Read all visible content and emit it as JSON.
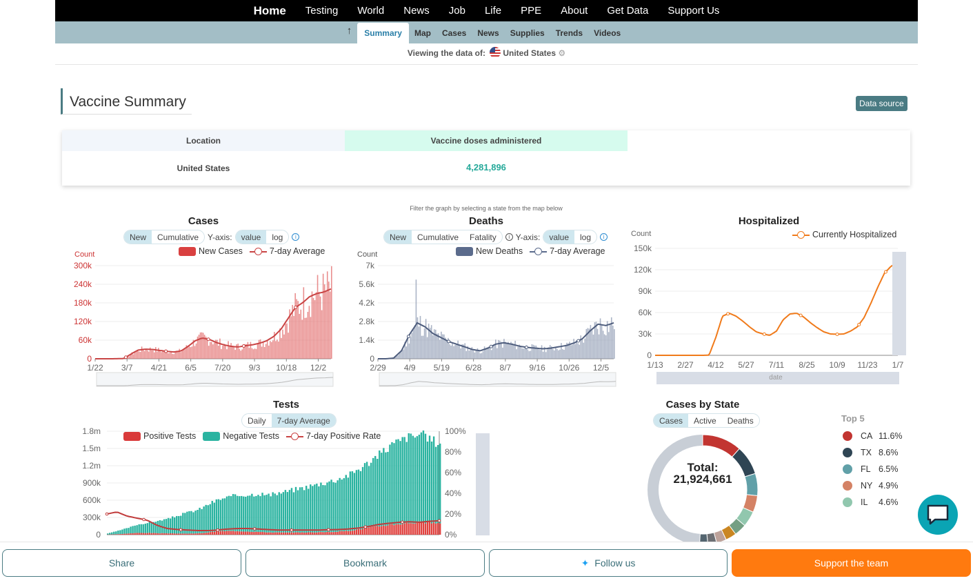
{
  "topnav": {
    "items": [
      "Home",
      "Testing",
      "World",
      "News",
      "Job",
      "Life",
      "PPE",
      "About",
      "Get Data",
      "Support Us"
    ]
  },
  "subnav": {
    "items": [
      "Summary",
      "Map",
      "Cases",
      "News",
      "Supplies",
      "Trends",
      "Videos"
    ],
    "active": "Summary"
  },
  "viewing": {
    "label": "Viewing the data of:",
    "location": "United States"
  },
  "vaccine": {
    "title": "Vaccine Summary",
    "data_source": "Data source",
    "col_location": "Location",
    "col_doses": "Vaccine doses administered",
    "row_location": "United States",
    "row_doses": "4,281,896"
  },
  "filter_note": "Filter the graph by selecting a state from the map below",
  "cases": {
    "title": "Cases",
    "pills": [
      "New",
      "Cumulative"
    ],
    "yaxis_label": "Y-axis:",
    "scale": [
      "value",
      "log"
    ],
    "legend_bar": "New Cases",
    "legend_line": "7-day Average",
    "count": "Count"
  },
  "deaths": {
    "title": "Deaths",
    "pills": [
      "New",
      "Cumulative",
      "Fatality"
    ],
    "yaxis_label": "Y-axis:",
    "scale": [
      "value",
      "log"
    ],
    "legend_bar": "New Deaths",
    "legend_line": "7-day Average",
    "count": "Count"
  },
  "hosp": {
    "title": "Hospitalized",
    "legend_line": "Currently Hospitalized",
    "count": "Count",
    "date_label": "date"
  },
  "tests": {
    "title": "Tests",
    "pills": [
      "Daily",
      "7-day Average"
    ],
    "legend_pos": "Positive Tests",
    "legend_neg": "Negative Tests",
    "legend_rate": "7-day Positive Rate"
  },
  "state": {
    "title": "Cases by State",
    "pills": [
      "Cases",
      "Active",
      "Deaths"
    ],
    "total_label": "Total:",
    "total": "21,924,661",
    "top5_title": "Top 5"
  },
  "top5": [
    {
      "state": "CA",
      "pct": "11.6%",
      "color": "#c23531"
    },
    {
      "state": "TX",
      "pct": "8.6%",
      "color": "#2f4554"
    },
    {
      "state": "FL",
      "pct": "6.5%",
      "color": "#61a0a8"
    },
    {
      "state": "NY",
      "pct": "4.9%",
      "color": "#d48265"
    },
    {
      "state": "IL",
      "pct": "4.6%",
      "color": "#91c7ae"
    }
  ],
  "bottom": {
    "share": "Share",
    "bookmark": "Bookmark",
    "follow": "Follow us",
    "support": "Support the team"
  },
  "colors": {
    "cases": "#d94040",
    "deaths": "#5b6b8c",
    "hosp": "#f07a1a",
    "neg": "#2ab3a0",
    "accent": "#4a7b83"
  },
  "chart_data": [
    {
      "type": "bar",
      "name": "Cases",
      "xticks": [
        "1/22",
        "3/7",
        "4/21",
        "6/5",
        "7/20",
        "9/3",
        "10/18",
        "12/2"
      ],
      "yticks": [
        "0",
        "60k",
        "120k",
        "180k",
        "240k",
        "300k"
      ],
      "ylim": [
        0,
        300000
      ],
      "ylabel": "Count",
      "avg": [
        0,
        0,
        0,
        200,
        800,
        15000,
        28000,
        31000,
        30000,
        27000,
        24000,
        22000,
        25000,
        40000,
        58000,
        67000,
        62000,
        52000,
        45000,
        40000,
        38000,
        42000,
        45000,
        50000,
        58000,
        72000,
        95000,
        130000,
        165000,
        180000,
        200000,
        210000,
        215000,
        225000
      ]
    },
    {
      "type": "bar",
      "name": "Deaths",
      "xticks": [
        "2/29",
        "4/9",
        "5/19",
        "6/28",
        "8/7",
        "9/16",
        "10/26",
        "12/5"
      ],
      "yticks": [
        "0",
        "1.4k",
        "2.8k",
        "4.2k",
        "5.6k",
        "7k"
      ],
      "ylim": [
        0,
        7000
      ],
      "ylabel": "Count",
      "avg": [
        0,
        0,
        50,
        600,
        1800,
        2700,
        2400,
        1900,
        1600,
        1300,
        1100,
        900,
        700,
        600,
        800,
        1100,
        1200,
        1100,
        950,
        850,
        800,
        750,
        800,
        900,
        1000,
        1200,
        1500,
        2100,
        2600,
        2500,
        2700
      ]
    },
    {
      "type": "line",
      "name": "Hospitalized",
      "xticks": [
        "1/13",
        "2/27",
        "4/12",
        "5/27",
        "7/11",
        "8/25",
        "10/9",
        "11/23",
        "1/7"
      ],
      "yticks": [
        "0",
        "30k",
        "60k",
        "90k",
        "120k",
        "150k"
      ],
      "ylim": [
        0,
        150000
      ],
      "ylabel": "Count",
      "values": [
        0,
        0,
        0,
        0,
        0,
        0,
        0,
        0,
        200,
        25000,
        55000,
        59000,
        55000,
        48000,
        40000,
        33000,
        30000,
        28000,
        34000,
        50000,
        58000,
        59000,
        54000,
        46000,
        39000,
        33000,
        30000,
        29500,
        30000,
        34000,
        40000,
        53000,
        73000,
        95000,
        115000,
        125000,
        130000
      ]
    },
    {
      "type": "bar",
      "name": "Tests",
      "yticks": [
        "0",
        "300k",
        "600k",
        "900k",
        "1.2m",
        "1.5m",
        "1.8m"
      ],
      "ylim": [
        0,
        1800000
      ],
      "y2ticks": [
        "0%",
        "20%",
        "40%",
        "60%",
        "80%",
        "100%"
      ],
      "neg": [
        20000,
        60000,
        100000,
        150000,
        180000,
        220000,
        260000,
        320000,
        380000,
        420000,
        500000,
        560000,
        600000,
        640000,
        660000,
        680000,
        660000,
        700000,
        740000,
        780000,
        820000,
        860000,
        900000,
        940000,
        1000000,
        1080000,
        1160000,
        1280000,
        1400000,
        1480000,
        1540000,
        1560000,
        1480000,
        1420000
      ],
      "pos": [
        2000,
        8000,
        20000,
        30000,
        30000,
        25000,
        22000,
        20000,
        18000,
        22000,
        40000,
        60000,
        65000,
        62000,
        55000,
        48000,
        40000,
        38000,
        36000,
        38000,
        40000,
        42000,
        46000,
        55000,
        70000,
        95000,
        125000,
        150000,
        175000,
        190000,
        205000,
        215000,
        210000,
        200000
      ],
      "rate": [
        20,
        22,
        18,
        16,
        14,
        9,
        6,
        5,
        4.5,
        4,
        4,
        4.5,
        5.5,
        6,
        6,
        5.5,
        5,
        4.5,
        4.5,
        4.5,
        4.5,
        4.5,
        4.8,
        5,
        5.5,
        6.5,
        8,
        10,
        11,
        12,
        12.5,
        12,
        13,
        13.5
      ]
    },
    {
      "type": "pie",
      "name": "Cases by State",
      "labels": [
        "CA",
        "TX",
        "FL",
        "NY",
        "IL"
      ],
      "values": [
        11.6,
        8.6,
        6.5,
        4.9,
        4.6
      ]
    }
  ]
}
